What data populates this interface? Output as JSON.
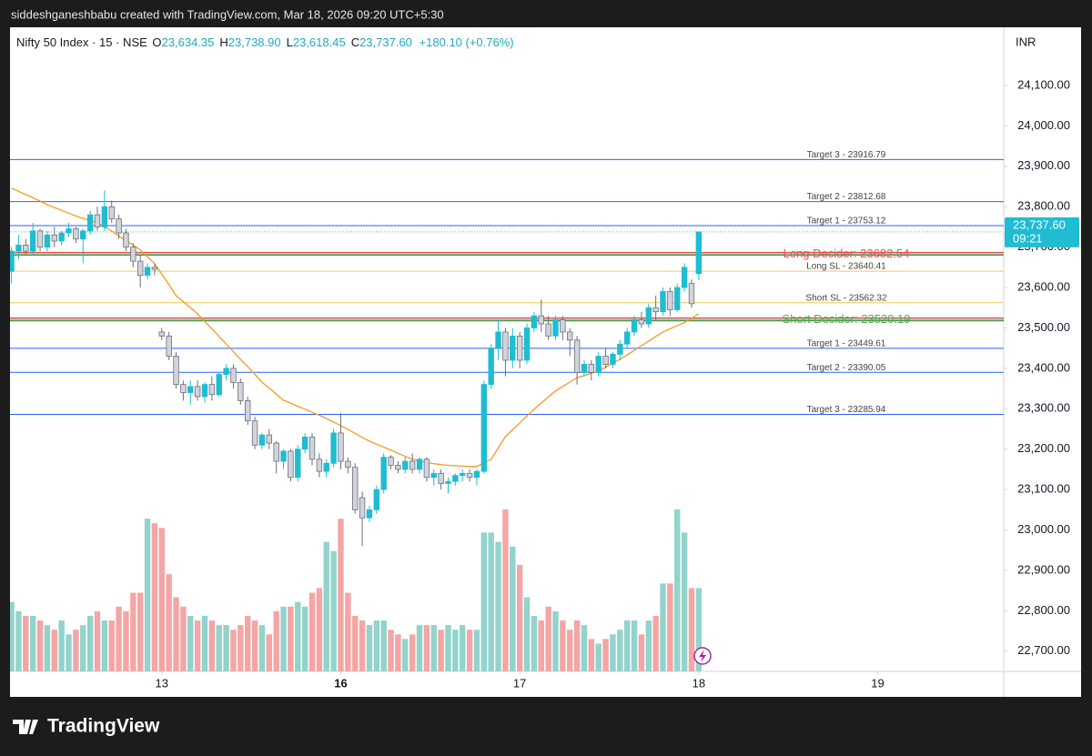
{
  "chart_data": {
    "type": "candlestick",
    "attribution": "siddeshganeshbabu created with TradingView.com, Mar 18, 2026 09:20 UTC+5:30",
    "symbol": "Nifty 50 Index · 15 · NSE",
    "ohlc_legend": [
      {
        "key": "O",
        "value": "23,634.35"
      },
      {
        "key": "H",
        "value": "23,738.90"
      },
      {
        "key": "L",
        "value": "23,618.45"
      },
      {
        "key": "C",
        "value": "23,737.60"
      }
    ],
    "change": "+180.10 (+0.76%)",
    "currency": "INR",
    "brand": "TradingView",
    "up_color": "#1fbcd2",
    "down_color": "#d1d4dc",
    "volume_up_color": "#92d3cc",
    "volume_down_color": "#f4a5a5",
    "ma_color": "#f59a23",
    "open": [
      23640,
      23690,
      23705,
      23690,
      23740,
      23700,
      23730,
      23715,
      23735,
      23745,
      23720,
      23740,
      23780,
      23750,
      23800,
      23770,
      23735,
      23700,
      23665,
      23630,
      23650,
      23490,
      23480,
      23430,
      23360,
      23340,
      23355,
      23330,
      23360,
      23335,
      23385,
      23400,
      23365,
      23320,
      23270,
      23210,
      23235,
      23215,
      23170,
      23195,
      23130,
      23200,
      23230,
      23175,
      23145,
      23165,
      23240,
      23170,
      23155,
      23080,
      23030,
      23050,
      23100,
      23180,
      23160,
      23150,
      23170,
      23150,
      23175,
      23130,
      23140,
      23115,
      23120,
      23135,
      23140,
      23130,
      23145,
      23360,
      23450,
      23490,
      23420,
      23480,
      23420,
      23500,
      23530,
      23510,
      23480,
      23520,
      23490,
      23470,
      23390,
      23410,
      23390,
      23430,
      23410,
      23435,
      23460,
      23490,
      23520,
      23510,
      23550,
      23540,
      23590,
      23545,
      23600,
      23610,
      23634.35
    ],
    "high": [
      23700,
      23730,
      23720,
      23760,
      23745,
      23740,
      23750,
      23740,
      23760,
      23750,
      23745,
      23790,
      23800,
      23840,
      23815,
      23780,
      23745,
      23710,
      23680,
      23660,
      23660,
      23500,
      23490,
      23440,
      23370,
      23370,
      23370,
      23365,
      23380,
      23390,
      23410,
      23410,
      23375,
      23330,
      23280,
      23240,
      23250,
      23220,
      23200,
      23200,
      23210,
      23240,
      23240,
      23190,
      23175,
      23250,
      23290,
      23180,
      23165,
      23095,
      23060,
      23110,
      23190,
      23185,
      23170,
      23180,
      23190,
      23180,
      23180,
      23150,
      23150,
      23130,
      23140,
      23150,
      23150,
      23150,
      23370,
      23460,
      23520,
      23500,
      23500,
      23490,
      23510,
      23540,
      23570,
      23530,
      23530,
      23530,
      23500,
      23480,
      23420,
      23420,
      23440,
      23450,
      23440,
      23470,
      23500,
      23530,
      23540,
      23560,
      23580,
      23600,
      23600,
      23610,
      23660,
      23620,
      23738.9
    ],
    "low": [
      23610,
      23670,
      23680,
      23680,
      23690,
      23690,
      23700,
      23705,
      23725,
      23710,
      23660,
      23730,
      23740,
      23740,
      23760,
      23720,
      23690,
      23650,
      23600,
      23620,
      23630,
      23470,
      23420,
      23350,
      23320,
      23310,
      23320,
      23315,
      23320,
      23330,
      23370,
      23350,
      23310,
      23260,
      23200,
      23200,
      23200,
      23140,
      23150,
      23120,
      23120,
      23190,
      23160,
      23130,
      23130,
      23155,
      23150,
      23140,
      23040,
      22960,
      23020,
      23040,
      23090,
      23150,
      23140,
      23140,
      23140,
      23140,
      23120,
      23110,
      23100,
      23090,
      23110,
      23120,
      23120,
      23110,
      23140,
      23350,
      23420,
      23380,
      23400,
      23400,
      23410,
      23490,
      23490,
      23470,
      23470,
      23470,
      23430,
      23360,
      23380,
      23370,
      23380,
      23400,
      23400,
      23420,
      23450,
      23480,
      23500,
      23500,
      23520,
      23530,
      23530,
      23540,
      23590,
      23550,
      23618.45
    ],
    "close": [
      23690,
      23705,
      23690,
      23740,
      23700,
      23730,
      23715,
      23735,
      23745,
      23720,
      23740,
      23780,
      23750,
      23800,
      23770,
      23735,
      23700,
      23665,
      23630,
      23650,
      23645,
      23480,
      23430,
      23360,
      23340,
      23355,
      23330,
      23360,
      23335,
      23385,
      23400,
      23365,
      23320,
      23270,
      23210,
      23235,
      23215,
      23170,
      23195,
      23130,
      23200,
      23230,
      23175,
      23145,
      23165,
      23240,
      23170,
      23155,
      23050,
      23030,
      23050,
      23100,
      23180,
      23160,
      23150,
      23170,
      23150,
      23175,
      23130,
      23140,
      23115,
      23120,
      23135,
      23140,
      23130,
      23145,
      23360,
      23450,
      23490,
      23420,
      23480,
      23420,
      23500,
      23530,
      23510,
      23480,
      23520,
      23490,
      23470,
      23390,
      23410,
      23390,
      23430,
      23410,
      23435,
      23460,
      23490,
      23520,
      23510,
      23550,
      23540,
      23590,
      23545,
      23600,
      23650,
      23560,
      23737.6
    ],
    "volume": [
      75,
      65,
      60,
      60,
      55,
      50,
      45,
      55,
      40,
      45,
      50,
      60,
      65,
      55,
      55,
      70,
      65,
      85,
      85,
      165,
      160,
      155,
      105,
      80,
      70,
      60,
      55,
      60,
      55,
      50,
      50,
      45,
      50,
      60,
      55,
      50,
      40,
      65,
      70,
      70,
      75,
      70,
      85,
      90,
      140,
      130,
      165,
      85,
      60,
      55,
      50,
      55,
      55,
      45,
      40,
      35,
      40,
      50,
      50,
      50,
      45,
      50,
      45,
      50,
      45,
      45,
      150,
      150,
      140,
      175,
      135,
      115,
      80,
      60,
      55,
      70,
      65,
      55,
      45,
      55,
      50,
      35,
      30,
      35,
      40,
      45,
      55,
      55,
      40,
      55,
      60,
      95,
      95,
      175,
      150,
      90,
      90
    ],
    "ma": [
      23846,
      23838,
      23830,
      23822,
      23814,
      23805,
      23798,
      23791,
      23784,
      23777,
      23771,
      23766,
      23760,
      23750,
      23740,
      23727,
      23716,
      23705,
      23693,
      23676,
      23659,
      23633,
      23607,
      23580,
      23565,
      23550,
      23535,
      23516,
      23498,
      23479,
      23460,
      23441,
      23422,
      23404,
      23385,
      23366,
      23351,
      23336,
      23321,
      23314,
      23306,
      23299,
      23291,
      23284,
      23276,
      23267,
      23258,
      23249,
      23239,
      23229,
      23220,
      23212,
      23205,
      23198,
      23190,
      23182,
      23175,
      23171,
      23167,
      23164,
      23162,
      23160,
      23159,
      23158,
      23157,
      23157,
      23166,
      23175,
      23203,
      23231,
      23248,
      23265,
      23282,
      23299,
      23314,
      23329,
      23344,
      23355,
      23366,
      23377,
      23382,
      23388,
      23393,
      23403,
      23413,
      23422,
      23433,
      23445,
      23456,
      23467,
      23479,
      23490,
      23498,
      23506,
      23513,
      23524,
      23535
    ],
    "levels": [
      {
        "label": "Target 3 - 23916.79",
        "value": 23916.79,
        "color": "#2962ff",
        "text_color": "#444444"
      },
      {
        "label": "Target 2 - 23812.68",
        "value": 23812.68,
        "color": "#2962ff",
        "text_color": "#444444"
      },
      {
        "label": "Target 1 - 23753.12",
        "value": 23753.12,
        "color": "#2962ff",
        "text_color": "#444444"
      },
      {
        "label": "Long Decider: 23682.54",
        "value": 23682.54,
        "color": "#e53935",
        "text_color": "#e05555"
      },
      {
        "label": "Long SL - 23640.41",
        "value": 23640.41,
        "color": "#f2c94c",
        "text_color": "#444444"
      },
      {
        "label": "Short SL - 23562.32",
        "value": 23562.32,
        "color": "#f2c94c",
        "text_color": "#444444"
      },
      {
        "label": "Short Decider: 23520.19",
        "value": 23520.19,
        "color": "#43a047",
        "text_color": "#4caf50"
      },
      {
        "label": "Target 1 - 23449.61",
        "value": 23449.61,
        "color": "#2962ff",
        "text_color": "#444444"
      },
      {
        "label": "Target 2 - 23390.05",
        "value": 23390.05,
        "color": "#2962ff",
        "text_color": "#444444"
      },
      {
        "label": "Target 3 - 23285.94",
        "value": 23285.94,
        "color": "#2962ff",
        "text_color": "#444444"
      }
    ],
    "last_price": {
      "value": 23737.6,
      "label": "23,737.60",
      "time": "09:21"
    },
    "xlim": [
      -0.2,
      138.6
    ],
    "xticks": [
      {
        "value": 21,
        "label": "13"
      },
      {
        "value": 46,
        "label": "16",
        "bold": true
      },
      {
        "value": 71,
        "label": "17"
      },
      {
        "value": 96,
        "label": "18"
      },
      {
        "value": 121,
        "label": "19"
      }
    ],
    "ylim": [
      22650,
      24244
    ],
    "yticks": [
      {
        "value": 22700,
        "label": "22,700.00"
      },
      {
        "value": 22800,
        "label": "22,800.00"
      },
      {
        "value": 22900,
        "label": "22,900.00"
      },
      {
        "value": 23000,
        "label": "23,000.00"
      },
      {
        "value": 23100,
        "label": "23,100.00"
      },
      {
        "value": 23200,
        "label": "23,200.00"
      },
      {
        "value": 23300,
        "label": "23,300.00"
      },
      {
        "value": 23400,
        "label": "23,400.00"
      },
      {
        "value": 23500,
        "label": "23,500.00"
      },
      {
        "value": 23600,
        "label": "23,600.00"
      },
      {
        "value": 23700,
        "label": "23,700.00"
      },
      {
        "value": 23800,
        "label": "23,800.00"
      },
      {
        "value": 23900,
        "label": "23,900.00"
      },
      {
        "value": 24000,
        "label": "24,000.00"
      },
      {
        "value": 24100,
        "label": "24,100.00"
      }
    ],
    "grid": false
  }
}
